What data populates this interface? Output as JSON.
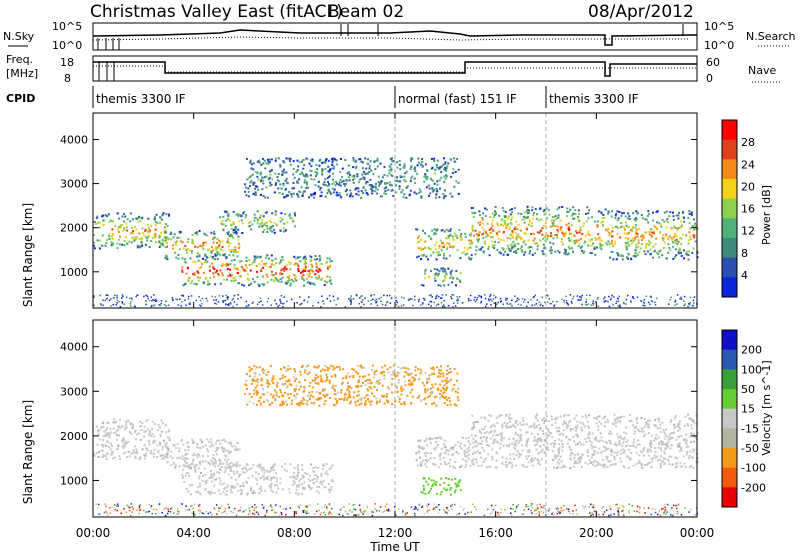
{
  "header": {
    "station": "Christmas Valley East (fitACF)",
    "beam": "Beam 02",
    "date": "08/Apr/2012"
  },
  "top_panel": {
    "left_label": "N.Sky",
    "right_label": "N.Search",
    "left_ticks": [
      "10^5",
      "10^0"
    ],
    "right_ticks": [
      "10^5",
      "10^0"
    ]
  },
  "freq_panel": {
    "left_label_1": "Freq.",
    "left_label_2": "[MHz]",
    "left_ticks": [
      "18",
      "8"
    ],
    "right_label": "Nave",
    "right_ticks": [
      "60",
      "0"
    ]
  },
  "cpid": {
    "label": "CPID",
    "segments": [
      "themis 3300 IF",
      "normal (fast) 151 IF",
      "themis 3300 IF"
    ],
    "segment_start_hours": [
      0.0,
      12.0,
      18.0
    ]
  },
  "axes": {
    "x_ticks": [
      "00:00",
      "04:00",
      "08:00",
      "12:00",
      "16:00",
      "20:00",
      "00:00"
    ],
    "x_label": "Time UT",
    "y_label": "Slant Range [km]",
    "y_ticks": [
      "1000",
      "2000",
      "3000",
      "4000"
    ]
  },
  "colors": {
    "power_scale": [
      "#0b25d9",
      "#2a4fb0",
      "#3f8a7c",
      "#4fb07a",
      "#8fd04a",
      "#f6d11a",
      "#f28a18",
      "#e0401b",
      "#ff0000"
    ],
    "velocity_scale": [
      "#e60000",
      "#f25a10",
      "#f39a1c",
      "#b4b4a4",
      "#c8c8c8",
      "#66cc33",
      "#3a9f3a",
      "#2a56b4",
      "#1010c8"
    ]
  },
  "chart_data": [
    {
      "type": "heatmap",
      "name_label": "Power",
      "colorbar_label": "Power [dB]",
      "colorbar_ticks": [
        "4",
        "8",
        "12",
        "16",
        "20",
        "24",
        "28"
      ],
      "x_range_hours": [
        0,
        24
      ],
      "ylim": [
        180,
        4600
      ],
      "regions": [
        {
          "t0": 0.0,
          "t1": 3.0,
          "r0": 1550,
          "r1": 2350,
          "level": 0.55
        },
        {
          "t0": 2.8,
          "t1": 5.8,
          "r0": 1300,
          "r1": 1950,
          "level": 0.6
        },
        {
          "t0": 3.5,
          "t1": 9.5,
          "r0": 700,
          "r1": 1400,
          "level": 0.75
        },
        {
          "t0": 5.0,
          "t1": 8.0,
          "r0": 1900,
          "r1": 2400,
          "level": 0.35
        },
        {
          "t0": 6.0,
          "t1": 14.5,
          "r0": 2700,
          "r1": 3600,
          "level": 0.15
        },
        {
          "t0": 12.8,
          "t1": 15.0,
          "r0": 1300,
          "r1": 2000,
          "level": 0.55
        },
        {
          "t0": 13.0,
          "t1": 14.6,
          "r0": 700,
          "r1": 1100,
          "level": 0.3
        },
        {
          "t0": 15.0,
          "t1": 20.5,
          "r0": 1400,
          "r1": 2500,
          "level": 0.6
        },
        {
          "t0": 20.5,
          "t1": 24.0,
          "r0": 1300,
          "r1": 2400,
          "level": 0.55
        }
      ]
    },
    {
      "type": "heatmap",
      "name_label": "Velocity",
      "colorbar_label": "Velocity [m s^-1]",
      "colorbar_ticks": [
        "200",
        "100",
        "50",
        "15",
        "-15",
        "-50",
        "-100",
        "-200"
      ],
      "x_range_hours": [
        0,
        24
      ],
      "ylim": [
        180,
        4600
      ],
      "regions": [
        {
          "t0": 0.0,
          "t1": 3.0,
          "r0": 1500,
          "r1": 2400,
          "v": 0
        },
        {
          "t0": 2.8,
          "t1": 5.8,
          "r0": 1300,
          "r1": 1950,
          "v": 0
        },
        {
          "t0": 3.5,
          "t1": 9.5,
          "r0": 700,
          "r1": 1400,
          "v": 0
        },
        {
          "t0": 6.0,
          "t1": 14.5,
          "r0": 2700,
          "r1": 3600,
          "v": -40
        },
        {
          "t0": 12.8,
          "t1": 15.0,
          "r0": 1300,
          "r1": 2000,
          "v": 0
        },
        {
          "t0": 13.0,
          "t1": 14.6,
          "r0": 700,
          "r1": 1100,
          "v": 60
        },
        {
          "t0": 15.0,
          "t1": 24.0,
          "r0": 1300,
          "r1": 2500,
          "v": 0
        }
      ]
    }
  ]
}
